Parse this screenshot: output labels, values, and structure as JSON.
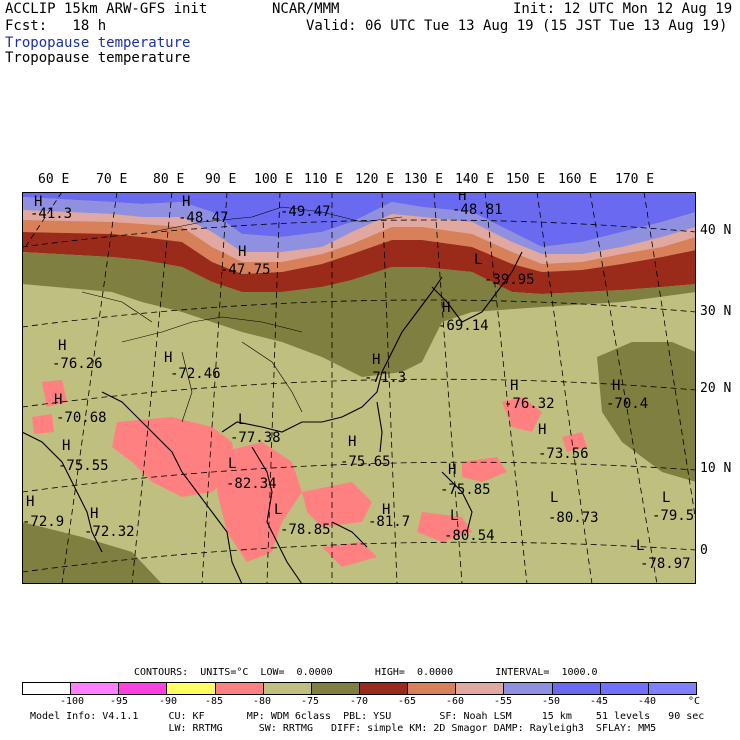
{
  "header": {
    "model": "ACCLIP 15km ARW-GFS init",
    "org": "NCAR/MMM",
    "init": "Init: 12 UTC Mon 12 Aug 19",
    "fcst": "Fcst:   18 h",
    "valid": "Valid: 06 UTC Tue 13 Aug 19 (15 JST Tue 13 Aug 19)",
    "field1": "Tropopause temperature",
    "field2": "Tropopause temperature"
  },
  "lon_labels": [
    "60 E",
    "70 E",
    "80 E",
    "90 E",
    "100 E",
    "110 E",
    "120 E",
    "130 E",
    "140 E",
    "150 E",
    "160 E",
    "170 E"
  ],
  "lat_labels": [
    "40 N",
    "30 N",
    "20 N",
    "10 N",
    "0"
  ],
  "markers": [
    {
      "sym": "H",
      "val": "-41.3"
    },
    {
      "sym": "H",
      "val": "-48.47"
    },
    {
      "sym": "",
      "val": "-49.47"
    },
    {
      "sym": "H",
      "val": "-48.81"
    },
    {
      "sym": "H",
      "val": "-47.75"
    },
    {
      "sym": "L",
      "val": "-39.95"
    },
    {
      "sym": "H",
      "val": "-69.14"
    },
    {
      "sym": "H",
      "val": "-76.26"
    },
    {
      "sym": "H",
      "val": "-72.46"
    },
    {
      "sym": "H",
      "val": "-71.3"
    },
    {
      "sym": "H",
      "val": "-76.32"
    },
    {
      "sym": "H",
      "val": "-70.4"
    },
    {
      "sym": "H",
      "val": "-70.68"
    },
    {
      "sym": "L",
      "val": "-77.38"
    },
    {
      "sym": "H",
      "val": "-75.55"
    },
    {
      "sym": "H",
      "val": "-75.65"
    },
    {
      "sym": "H",
      "val": "-73.56"
    },
    {
      "sym": "L",
      "val": "-82.34"
    },
    {
      "sym": "H",
      "val": "-75.85"
    },
    {
      "sym": "H",
      "val": "-72.9"
    },
    {
      "sym": "H",
      "val": "-72.32"
    },
    {
      "sym": "L",
      "val": "-78.85"
    },
    {
      "sym": "H",
      "val": "-81.7"
    },
    {
      "sym": "L",
      "val": "-80.54"
    },
    {
      "sym": "L",
      "val": "-80.73"
    },
    {
      "sym": "L",
      "val": "-79.5"
    },
    {
      "sym": "L",
      "val": "-78.97"
    }
  ],
  "footer": {
    "contours": "CONTOURS:  UNITS=°C  LOW=  0.0000       HIGH=  0.0000       INTERVAL=  1000.0",
    "model_info": "Model Info: V4.1.1     CU: KF       MP: WDM 6class  PBL: YSU        SF: Noah LSM     15 km    51 levels   90 sec",
    "model_info2": "                       LW: RRTMG      SW: RRTMG   DIFF: simple KM: 2D Smagor DAMP: Rayleigh3  SFLAY: MM5"
  },
  "colorbar": {
    "colors": [
      "#ffffff",
      "#ff80ff",
      "#ff40e0",
      "#ffff66",
      "#ff8080",
      "#bfbf80",
      "#7f7f40",
      "#9a2a1a",
      "#d8805a",
      "#e0a8a0",
      "#9090e0",
      "#6a6af0",
      "#7070ff",
      "#8080ff"
    ],
    "ticks": [
      "-100",
      "-95",
      "-90",
      "-85",
      "-80",
      "-75",
      "-70",
      "-65",
      "-60",
      "-55",
      "-50",
      "-45",
      "-40"
    ],
    "unit": "°C"
  }
}
